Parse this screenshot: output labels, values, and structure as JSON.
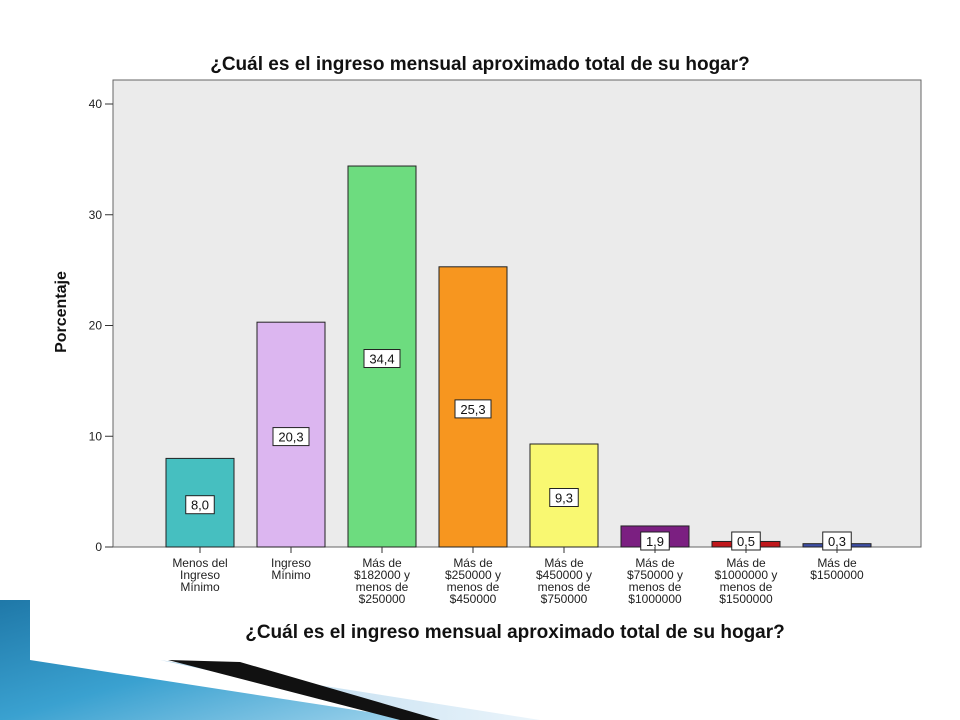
{
  "chart_data": {
    "type": "bar",
    "title": "¿Cuál es el ingreso mensual aproximado total de su hogar?",
    "xlabel": "¿Cuál es el ingreso mensual aproximado total de su hogar?",
    "ylabel": "Porcentaje",
    "ylim": [
      0,
      40
    ],
    "yticks": [
      "0",
      "10",
      "20",
      "30",
      "40"
    ],
    "grid": false,
    "categories": [
      [
        "Menos del",
        "Ingreso",
        "Mínimo"
      ],
      [
        "Ingreso",
        "Mínimo"
      ],
      [
        "Más de",
        "$182000 y",
        "menos de",
        "$250000"
      ],
      [
        "Más de",
        "$250000 y",
        "menos de",
        "$450000"
      ],
      [
        "Más de",
        "$450000 y",
        "menos de",
        "$750000"
      ],
      [
        "Más de",
        "$750000 y",
        "menos de",
        "$1000000"
      ],
      [
        "Más de",
        "$1000000 y",
        "menos de",
        "$1500000"
      ],
      [
        "Más de",
        "$1500000"
      ]
    ],
    "values": [
      8.0,
      20.3,
      34.4,
      25.3,
      9.3,
      1.9,
      0.5,
      0.3
    ],
    "value_labels": [
      "8,0",
      "20,3",
      "34,4",
      "25,3",
      "9,3",
      "1,9",
      "0,5",
      "0,3"
    ],
    "colors": [
      "#46bfc0",
      "#dcb6f0",
      "#6ddc7f",
      "#f7961f",
      "#f9f871",
      "#7b1f81",
      "#c0171b",
      "#3e4fa7"
    ],
    "plot_background": "#ebebeb"
  }
}
